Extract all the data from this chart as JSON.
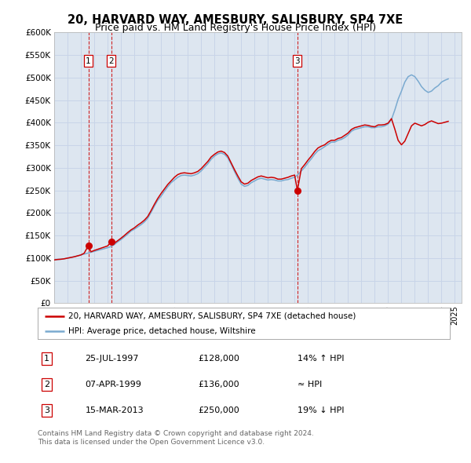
{
  "title": "20, HARVARD WAY, AMESBURY, SALISBURY, SP4 7XE",
  "subtitle": "Price paid vs. HM Land Registry's House Price Index (HPI)",
  "ylim": [
    0,
    600000
  ],
  "yticks": [
    0,
    50000,
    100000,
    150000,
    200000,
    250000,
    300000,
    350000,
    400000,
    450000,
    500000,
    550000,
    600000
  ],
  "ytick_labels": [
    "£0",
    "£50K",
    "£100K",
    "£150K",
    "£200K",
    "£250K",
    "£300K",
    "£350K",
    "£400K",
    "£450K",
    "£500K",
    "£550K",
    "£600K"
  ],
  "xlim_start": 1995.0,
  "xlim_end": 2025.5,
  "grid_color": "#c8d4e8",
  "background_color": "#ffffff",
  "plot_bg_color": "#dde6f0",
  "red_color": "#cc0000",
  "blue_color": "#7aaad0",
  "sale_dates": [
    1997.56,
    1999.27,
    2013.21
  ],
  "sale_prices": [
    128000,
    136000,
    250000
  ],
  "sale_labels": [
    "1",
    "2",
    "3"
  ],
  "legend_label_red": "20, HARVARD WAY, AMESBURY, SALISBURY, SP4 7XE (detached house)",
  "legend_label_blue": "HPI: Average price, detached house, Wiltshire",
  "table_rows": [
    {
      "num": "1",
      "date": "25-JUL-1997",
      "price": "£128,000",
      "change": "14% ↑ HPI"
    },
    {
      "num": "2",
      "date": "07-APR-1999",
      "price": "£136,000",
      "change": "≈ HPI"
    },
    {
      "num": "3",
      "date": "15-MAR-2013",
      "price": "£250,000",
      "change": "19% ↓ HPI"
    }
  ],
  "footnote1": "Contains HM Land Registry data © Crown copyright and database right 2024.",
  "footnote2": "This data is licensed under the Open Government Licence v3.0.",
  "hpi_years": [
    1995.0,
    1995.25,
    1995.5,
    1995.75,
    1996.0,
    1996.25,
    1996.5,
    1996.75,
    1997.0,
    1997.25,
    1997.5,
    1997.75,
    1998.0,
    1998.25,
    1998.5,
    1998.75,
    1999.0,
    1999.25,
    1999.5,
    1999.75,
    2000.0,
    2000.25,
    2000.5,
    2000.75,
    2001.0,
    2001.25,
    2001.5,
    2001.75,
    2002.0,
    2002.25,
    2002.5,
    2002.75,
    2003.0,
    2003.25,
    2003.5,
    2003.75,
    2004.0,
    2004.25,
    2004.5,
    2004.75,
    2005.0,
    2005.25,
    2005.5,
    2005.75,
    2006.0,
    2006.25,
    2006.5,
    2006.75,
    2007.0,
    2007.25,
    2007.5,
    2007.75,
    2008.0,
    2008.25,
    2008.5,
    2008.75,
    2009.0,
    2009.25,
    2009.5,
    2009.75,
    2010.0,
    2010.25,
    2010.5,
    2010.75,
    2011.0,
    2011.25,
    2011.5,
    2011.75,
    2012.0,
    2012.25,
    2012.5,
    2012.75,
    2013.0,
    2013.25,
    2013.5,
    2013.75,
    2014.0,
    2014.25,
    2014.5,
    2014.75,
    2015.0,
    2015.25,
    2015.5,
    2015.75,
    2016.0,
    2016.25,
    2016.5,
    2016.75,
    2017.0,
    2017.25,
    2017.5,
    2017.75,
    2018.0,
    2018.25,
    2018.5,
    2018.75,
    2019.0,
    2019.25,
    2019.5,
    2019.75,
    2020.0,
    2020.25,
    2020.5,
    2020.75,
    2021.0,
    2021.25,
    2021.5,
    2021.75,
    2022.0,
    2022.25,
    2022.5,
    2022.75,
    2023.0,
    2023.25,
    2023.5,
    2023.75,
    2024.0,
    2024.25,
    2024.5
  ],
  "hpi_values": [
    96000,
    97000,
    97500,
    98500,
    100000,
    101500,
    103000,
    105000,
    107000,
    109000,
    111000,
    113000,
    115000,
    117000,
    119000,
    121000,
    123000,
    125500,
    130000,
    136000,
    141000,
    147000,
    153000,
    160000,
    164000,
    169000,
    174000,
    180000,
    188000,
    201000,
    215000,
    228000,
    237000,
    248000,
    258000,
    267000,
    273000,
    279000,
    283000,
    284000,
    283000,
    282000,
    284000,
    287000,
    293000,
    301000,
    309000,
    319000,
    326000,
    331000,
    333000,
    330000,
    322000,
    308000,
    292000,
    277000,
    264000,
    259000,
    261000,
    267000,
    271000,
    275000,
    277000,
    275000,
    273000,
    274000,
    273000,
    271000,
    271000,
    273000,
    274000,
    277000,
    279000,
    285000,
    293000,
    301000,
    311000,
    320000,
    330000,
    338000,
    342000,
    347000,
    352000,
    357000,
    357000,
    361000,
    363000,
    367000,
    373000,
    381000,
    385000,
    387000,
    389000,
    391000,
    391000,
    389000,
    389000,
    391000,
    391000,
    393000,
    397000,
    407000,
    428000,
    452000,
    470000,
    490000,
    502000,
    506000,
    502000,
    492000,
    480000,
    472000,
    467000,
    470000,
    477000,
    482000,
    490000,
    494000,
    497000
  ],
  "red_years": [
    1995.0,
    1995.25,
    1995.5,
    1995.75,
    1996.0,
    1996.25,
    1996.5,
    1996.75,
    1997.0,
    1997.25,
    1997.56,
    1997.75,
    1998.0,
    1998.25,
    1998.5,
    1998.75,
    1999.0,
    1999.27,
    1999.5,
    1999.75,
    2000.0,
    2000.25,
    2000.5,
    2000.75,
    2001.0,
    2001.25,
    2001.5,
    2001.75,
    2002.0,
    2002.25,
    2002.5,
    2002.75,
    2003.0,
    2003.25,
    2003.5,
    2003.75,
    2004.0,
    2004.25,
    2004.5,
    2004.75,
    2005.0,
    2005.25,
    2005.5,
    2005.75,
    2006.0,
    2006.25,
    2006.5,
    2006.75,
    2007.0,
    2007.25,
    2007.5,
    2007.75,
    2008.0,
    2008.25,
    2008.5,
    2008.75,
    2009.0,
    2009.25,
    2009.5,
    2009.75,
    2010.0,
    2010.25,
    2010.5,
    2010.75,
    2011.0,
    2011.25,
    2011.5,
    2011.75,
    2012.0,
    2012.25,
    2012.5,
    2012.75,
    2013.0,
    2013.21,
    2013.5,
    2013.75,
    2014.0,
    2014.25,
    2014.5,
    2014.75,
    2015.0,
    2015.25,
    2015.5,
    2015.75,
    2016.0,
    2016.25,
    2016.5,
    2016.75,
    2017.0,
    2017.25,
    2017.5,
    2017.75,
    2018.0,
    2018.25,
    2018.5,
    2018.75,
    2019.0,
    2019.25,
    2019.5,
    2019.75,
    2020.0,
    2020.25,
    2020.5,
    2020.75,
    2021.0,
    2021.25,
    2021.5,
    2021.75,
    2022.0,
    2022.25,
    2022.5,
    2022.75,
    2023.0,
    2023.25,
    2023.5,
    2023.75,
    2024.0,
    2024.25,
    2024.5
  ],
  "red_values": [
    96000,
    97000,
    97500,
    98500,
    100000,
    101500,
    103000,
    105000,
    107000,
    111000,
    128000,
    114000,
    117000,
    119500,
    122000,
    124500,
    127000,
    136000,
    133000,
    138500,
    144000,
    150000,
    156500,
    162500,
    167000,
    173000,
    178000,
    184000,
    192000,
    205000,
    219000,
    232000,
    243000,
    253000,
    263000,
    271000,
    279000,
    285000,
    288000,
    289000,
    288000,
    287000,
    289000,
    292000,
    298000,
    306000,
    314000,
    324000,
    330000,
    335000,
    337000,
    334000,
    326000,
    311000,
    296000,
    282000,
    269000,
    264000,
    266000,
    272000,
    276000,
    280000,
    282000,
    280000,
    278000,
    279000,
    278000,
    275000,
    275000,
    277000,
    279000,
    282000,
    284000,
    250000,
    298000,
    307000,
    317000,
    326000,
    336000,
    344000,
    348000,
    351000,
    357000,
    361000,
    361000,
    365000,
    367000,
    372000,
    377000,
    385000,
    389000,
    391000,
    393000,
    395000,
    394000,
    392000,
    391000,
    395000,
    395000,
    396000,
    399000,
    409000,
    386000,
    361000,
    351000,
    359000,
    376000,
    393000,
    399000,
    396000,
    393000,
    396000,
    401000,
    404000,
    401000,
    398000,
    399000,
    401000,
    403000
  ]
}
